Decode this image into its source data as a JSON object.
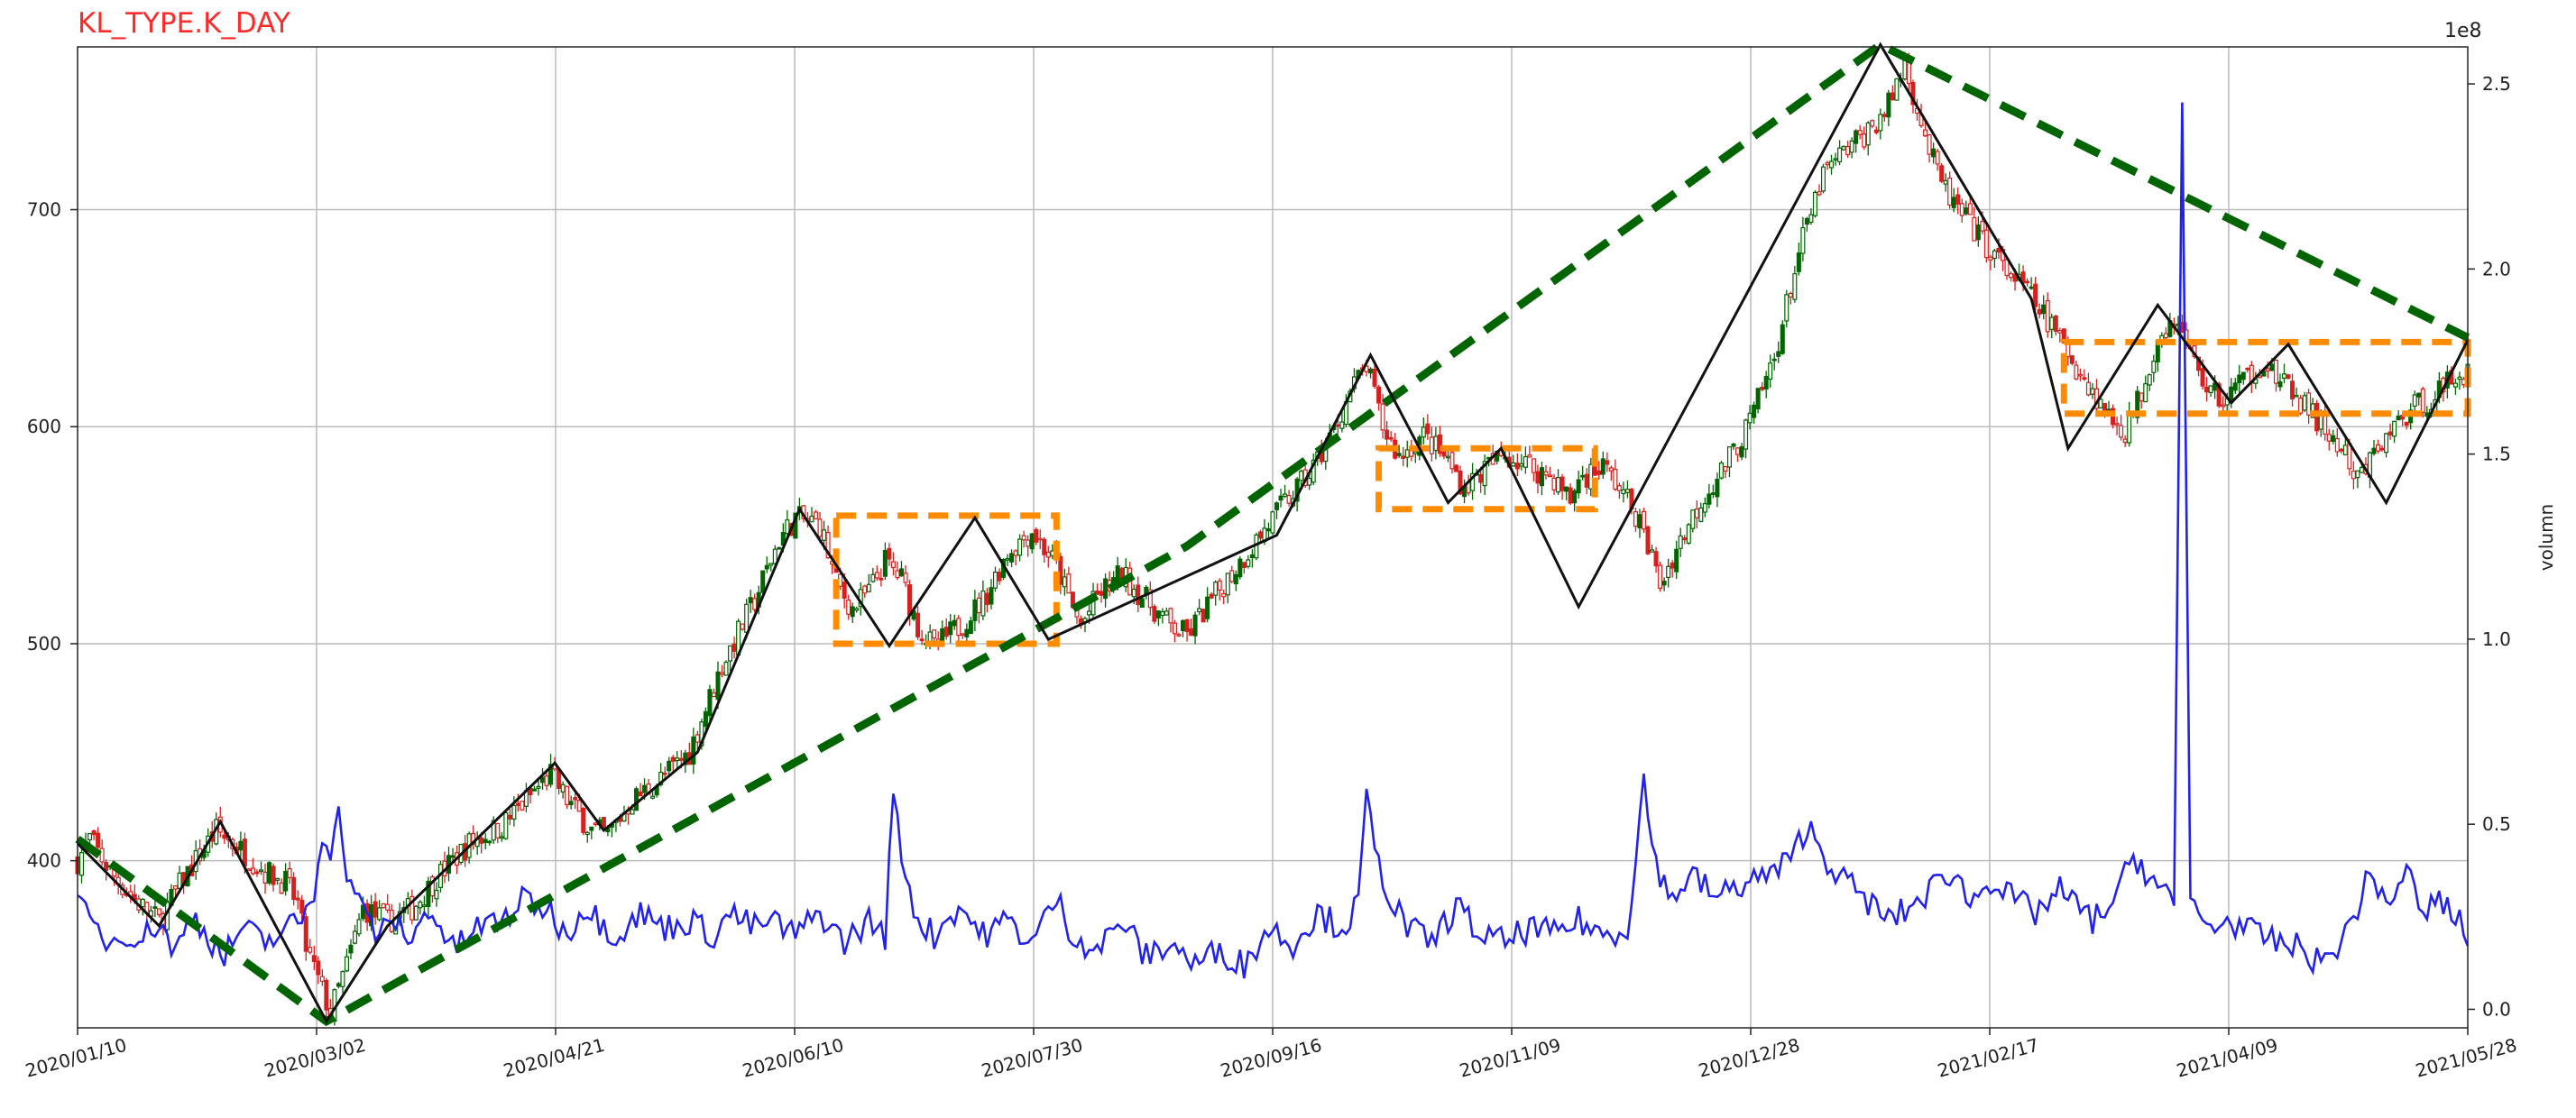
{
  "chart_data": {
    "type": "candlestick",
    "title": "KL_TYPE.K_DAY",
    "xlabel": "",
    "ylabel": "",
    "y2label": "volumn",
    "y2_multiplier_label": "1e8",
    "ylim": [
      323,
      775
    ],
    "y2lim": [
      -0.05,
      2.6
    ],
    "grid": true,
    "x_tick_labels": [
      "2020/01/10",
      "2020/03/02",
      "2020/04/21",
      "2020/06/10",
      "2020/07/30",
      "2020/09/16",
      "2020/11/09",
      "2020/12/28",
      "2021/02/17",
      "2021/04/09",
      "2021/05/28"
    ],
    "y_ticks": [
      400,
      500,
      600,
      700
    ],
    "y2_ticks": [
      "0.0",
      "0.5",
      "1.0",
      "1.5",
      "2.0",
      "2.5"
    ],
    "price_path_keypoints": [
      [
        0,
        400
      ],
      [
        3,
        410
      ],
      [
        8,
        395
      ],
      [
        14,
        382
      ],
      [
        20,
        372
      ],
      [
        26,
        392
      ],
      [
        34,
        414
      ],
      [
        40,
        405
      ],
      [
        46,
        395
      ],
      [
        51,
        390
      ],
      [
        54,
        380
      ],
      [
        56,
        360
      ],
      [
        60,
        340
      ],
      [
        62,
        330
      ],
      [
        66,
        352
      ],
      [
        70,
        378
      ],
      [
        76,
        372
      ],
      [
        82,
        378
      ],
      [
        88,
        392
      ],
      [
        96,
        408
      ],
      [
        104,
        416
      ],
      [
        112,
        432
      ],
      [
        116,
        440
      ],
      [
        120,
        428
      ],
      [
        126,
        414
      ],
      [
        130,
        412
      ],
      [
        136,
        428
      ],
      [
        142,
        436
      ],
      [
        150,
        450
      ],
      [
        158,
        490
      ],
      [
        166,
        520
      ],
      [
        172,
        548
      ],
      [
        176,
        558
      ],
      [
        182,
        555
      ],
      [
        186,
        528
      ],
      [
        190,
        516
      ],
      [
        194,
        524
      ],
      [
        198,
        538
      ],
      [
        202,
        530
      ],
      [
        206,
        508
      ],
      [
        210,
        498
      ],
      [
        216,
        508
      ],
      [
        222,
        520
      ],
      [
        228,
        542
      ],
      [
        234,
        552
      ],
      [
        240,
        536
      ],
      [
        244,
        516
      ],
      [
        246,
        508
      ],
      [
        250,
        522
      ],
      [
        256,
        532
      ],
      [
        262,
        520
      ],
      [
        268,
        508
      ],
      [
        272,
        504
      ],
      [
        278,
        520
      ],
      [
        284,
        535
      ],
      [
        290,
        550
      ],
      [
        296,
        565
      ],
      [
        302,
        578
      ],
      [
        308,
        598
      ],
      [
        312,
        616
      ],
      [
        316,
        628
      ],
      [
        320,
        600
      ],
      [
        324,
        586
      ],
      [
        330,
        596
      ],
      [
        336,
        584
      ],
      [
        340,
        572
      ],
      [
        346,
        582
      ],
      [
        350,
        587
      ],
      [
        356,
        582
      ],
      [
        362,
        576
      ],
      [
        366,
        566
      ],
      [
        368,
        576
      ],
      [
        374,
        582
      ],
      [
        378,
        572
      ],
      [
        382,
        560
      ],
      [
        386,
        540
      ],
      [
        388,
        527
      ],
      [
        392,
        544
      ],
      [
        398,
        566
      ],
      [
        404,
        582
      ],
      [
        410,
        602
      ],
      [
        416,
        632
      ],
      [
        422,
        680
      ],
      [
        428,
        716
      ],
      [
        434,
        728
      ],
      [
        440,
        738
      ],
      [
        444,
        748
      ],
      [
        448,
        768
      ],
      [
        452,
        740
      ],
      [
        456,
        716
      ],
      [
        460,
        702
      ],
      [
        466,
        688
      ],
      [
        472,
        674
      ],
      [
        478,
        662
      ],
      [
        484,
        646
      ],
      [
        490,
        628
      ],
      [
        494,
        616
      ],
      [
        498,
        605
      ],
      [
        502,
        598
      ],
      [
        506,
        616
      ],
      [
        510,
        642
      ],
      [
        514,
        650
      ],
      [
        518,
        634
      ],
      [
        522,
        618
      ],
      [
        526,
        612
      ],
      [
        530,
        620
      ],
      [
        536,
        630
      ],
      [
        540,
        620
      ],
      [
        544,
        614
      ],
      [
        548,
        605
      ],
      [
        552,
        596
      ],
      [
        556,
        586
      ],
      [
        558,
        574
      ],
      [
        560,
        578
      ],
      [
        564,
        590
      ],
      [
        568,
        600
      ],
      [
        572,
        608
      ],
      [
        576,
        612
      ],
      [
        580,
        618
      ],
      [
        584,
        625
      ]
    ],
    "volume_path_keypoints": [
      [
        0,
        0.28
      ],
      [
        4,
        0.22
      ],
      [
        8,
        0.18
      ],
      [
        12,
        0.21
      ],
      [
        16,
        0.19
      ],
      [
        20,
        0.24
      ],
      [
        24,
        0.15
      ],
      [
        28,
        0.26
      ],
      [
        32,
        0.2
      ],
      [
        36,
        0.14
      ],
      [
        40,
        0.22
      ],
      [
        46,
        0.18
      ],
      [
        52,
        0.22
      ],
      [
        56,
        0.26
      ],
      [
        58,
        0.32
      ],
      [
        60,
        0.48
      ],
      [
        62,
        0.44
      ],
      [
        64,
        0.52
      ],
      [
        66,
        0.38
      ],
      [
        70,
        0.26
      ],
      [
        74,
        0.2
      ],
      [
        78,
        0.24
      ],
      [
        82,
        0.18
      ],
      [
        86,
        0.28
      ],
      [
        92,
        0.16
      ],
      [
        98,
        0.22
      ],
      [
        104,
        0.24
      ],
      [
        110,
        0.3
      ],
      [
        116,
        0.26
      ],
      [
        120,
        0.2
      ],
      [
        124,
        0.28
      ],
      [
        128,
        0.24
      ],
      [
        132,
        0.2
      ],
      [
        138,
        0.26
      ],
      [
        144,
        0.22
      ],
      [
        150,
        0.24
      ],
      [
        156,
        0.2
      ],
      [
        160,
        0.26
      ],
      [
        166,
        0.22
      ],
      [
        170,
        0.24
      ],
      [
        176,
        0.2
      ],
      [
        182,
        0.26
      ],
      [
        188,
        0.18
      ],
      [
        194,
        0.24
      ],
      [
        198,
        0.2
      ],
      [
        200,
        0.58
      ],
      [
        202,
        0.42
      ],
      [
        206,
        0.24
      ],
      [
        210,
        0.2
      ],
      [
        216,
        0.28
      ],
      [
        222,
        0.2
      ],
      [
        228,
        0.24
      ],
      [
        234,
        0.18
      ],
      [
        240,
        0.3
      ],
      [
        244,
        0.2
      ],
      [
        250,
        0.16
      ],
      [
        256,
        0.24
      ],
      [
        262,
        0.14
      ],
      [
        268,
        0.18
      ],
      [
        274,
        0.12
      ],
      [
        280,
        0.16
      ],
      [
        286,
        0.12
      ],
      [
        292,
        0.22
      ],
      [
        298,
        0.18
      ],
      [
        304,
        0.26
      ],
      [
        310,
        0.22
      ],
      [
        314,
        0.28
      ],
      [
        316,
        0.58
      ],
      [
        318,
        0.42
      ],
      [
        322,
        0.3
      ],
      [
        326,
        0.22
      ],
      [
        332,
        0.18
      ],
      [
        338,
        0.28
      ],
      [
        344,
        0.2
      ],
      [
        350,
        0.18
      ],
      [
        356,
        0.22
      ],
      [
        362,
        0.2
      ],
      [
        368,
        0.24
      ],
      [
        374,
        0.2
      ],
      [
        380,
        0.22
      ],
      [
        384,
        0.62
      ],
      [
        386,
        0.44
      ],
      [
        390,
        0.3
      ],
      [
        396,
        0.36
      ],
      [
        402,
        0.3
      ],
      [
        408,
        0.34
      ],
      [
        414,
        0.36
      ],
      [
        420,
        0.4
      ],
      [
        424,
        0.5
      ],
      [
        428,
        0.42
      ],
      [
        432,
        0.36
      ],
      [
        438,
        0.3
      ],
      [
        444,
        0.24
      ],
      [
        450,
        0.28
      ],
      [
        456,
        0.34
      ],
      [
        460,
        0.38
      ],
      [
        464,
        0.28
      ],
      [
        468,
        0.36
      ],
      [
        474,
        0.3
      ],
      [
        480,
        0.26
      ],
      [
        486,
        0.32
      ],
      [
        490,
        0.28
      ],
      [
        494,
        0.24
      ],
      [
        500,
        0.3
      ],
      [
        504,
        0.42
      ],
      [
        508,
        0.36
      ],
      [
        514,
        0.28
      ],
      [
        516,
        2.45
      ],
      [
        518,
        0.3
      ],
      [
        522,
        0.22
      ],
      [
        528,
        0.24
      ],
      [
        534,
        0.2
      ],
      [
        540,
        0.18
      ],
      [
        546,
        0.16
      ],
      [
        550,
        0.12
      ],
      [
        556,
        0.2
      ],
      [
        562,
        0.36
      ],
      [
        568,
        0.28
      ],
      [
        572,
        0.4
      ],
      [
        574,
        0.24
      ],
      [
        578,
        0.3
      ],
      [
        582,
        0.26
      ],
      [
        586,
        0.2
      ]
    ],
    "bi_lines": [
      [
        [
          0,
          408
        ],
        [
          20,
          370
        ],
        [
          35,
          418
        ],
        [
          61,
          326
        ],
        [
          76,
          370
        ],
        [
          117,
          445
        ],
        [
          129,
          414
        ],
        [
          152,
          450
        ],
        [
          177,
          562
        ],
        [
          199,
          499
        ],
        [
          220,
          558
        ],
        [
          238,
          502
        ],
        [
          294,
          550
        ],
        [
          317,
          633
        ],
        [
          336,
          565
        ],
        [
          349,
          590
        ],
        [
          368,
          517
        ],
        [
          442,
          776
        ],
        [
          479,
          659
        ],
        [
          488,
          590
        ],
        [
          510,
          656
        ],
        [
          528,
          611
        ],
        [
          542,
          638
        ],
        [
          566,
          565
        ],
        [
          586,
          640
        ]
      ]
    ],
    "seg_lines": [
      [
        [
          0,
          410
        ],
        [
          61,
          326
        ],
        [
          272,
          545
        ],
        [
          442,
          776
        ],
        [
          586,
          641
        ]
      ]
    ],
    "zs_boxes": [
      {
        "x1": 186,
        "x2": 240,
        "y1": 500,
        "y2": 559
      },
      {
        "x1": 319,
        "x2": 372,
        "y1": 562,
        "y2": 590
      },
      {
        "x1": 487,
        "x2": 586,
        "y1": 606,
        "y2": 639
      }
    ],
    "colors": {
      "up": "#006400",
      "down": "#d62020",
      "bi": "#111111",
      "seg": "#006400",
      "zs": "#ff8c00",
      "volume": "#2222ee",
      "grid": "#bbbbbb",
      "title": "#ff2a2a"
    }
  }
}
